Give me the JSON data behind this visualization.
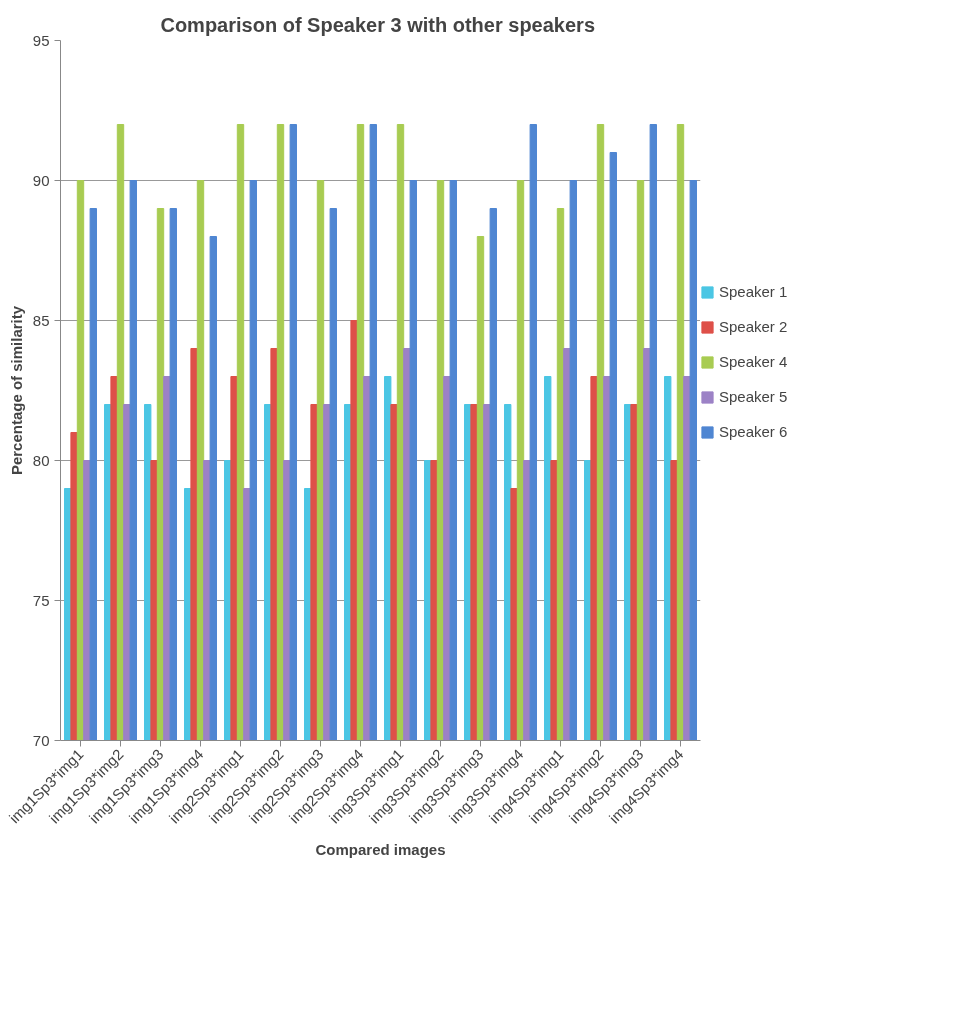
{
  "chart_data": {
    "type": "bar",
    "title": "Comparison  of Speaker 3 with other speakers",
    "xlabel": "Compared images",
    "ylabel": "Percentage of similarity",
    "categories": [
      "img1Sp3*img1",
      "img1Sp3*img2",
      "img1Sp3*img3",
      "img1Sp3*img4",
      "img2Sp3*img1",
      "img2Sp3*img2",
      "img2Sp3*img3",
      "img2Sp3*img4",
      "img3Sp3*img1",
      "img3Sp3*img2",
      "img3Sp3*img3",
      "img3Sp3*img4",
      "img4Sp3*img1",
      "img4Sp3*img2",
      "img4Sp3*img3",
      "img4Sp3*img4"
    ],
    "series": [
      {
        "name": "Speaker 1",
        "color": "#4bc6e4",
        "values": [
          79,
          82,
          82,
          79,
          80,
          82,
          79,
          82,
          83,
          80,
          82,
          82,
          83,
          80,
          82,
          83
        ]
      },
      {
        "name": "Speaker 2",
        "color": "#de5049",
        "values": [
          81,
          83,
          80,
          84,
          83,
          84,
          82,
          85,
          82,
          80,
          82,
          79,
          80,
          83,
          82,
          80
        ]
      },
      {
        "name": "Speaker 4",
        "color": "#a8cc52",
        "values": [
          90,
          92,
          89,
          90,
          92,
          92,
          90,
          92,
          92,
          90,
          88,
          90,
          89,
          92,
          90,
          92
        ]
      },
      {
        "name": "Speaker 5",
        "color": "#9c82c6",
        "values": [
          80,
          82,
          83,
          80,
          79,
          80,
          82,
          83,
          84,
          83,
          82,
          80,
          84,
          83,
          84,
          83
        ]
      },
      {
        "name": "Speaker 6",
        "color": "#4f86d2",
        "values": [
          89,
          90,
          89,
          88,
          90,
          92,
          89,
          92,
          90,
          90,
          89,
          92,
          90,
          91,
          92,
          90
        ]
      }
    ],
    "ylim": [
      70,
      95
    ],
    "yticks": [
      70,
      75,
      80,
      85,
      90,
      95
    ],
    "grid": "y",
    "legend": "right"
  }
}
